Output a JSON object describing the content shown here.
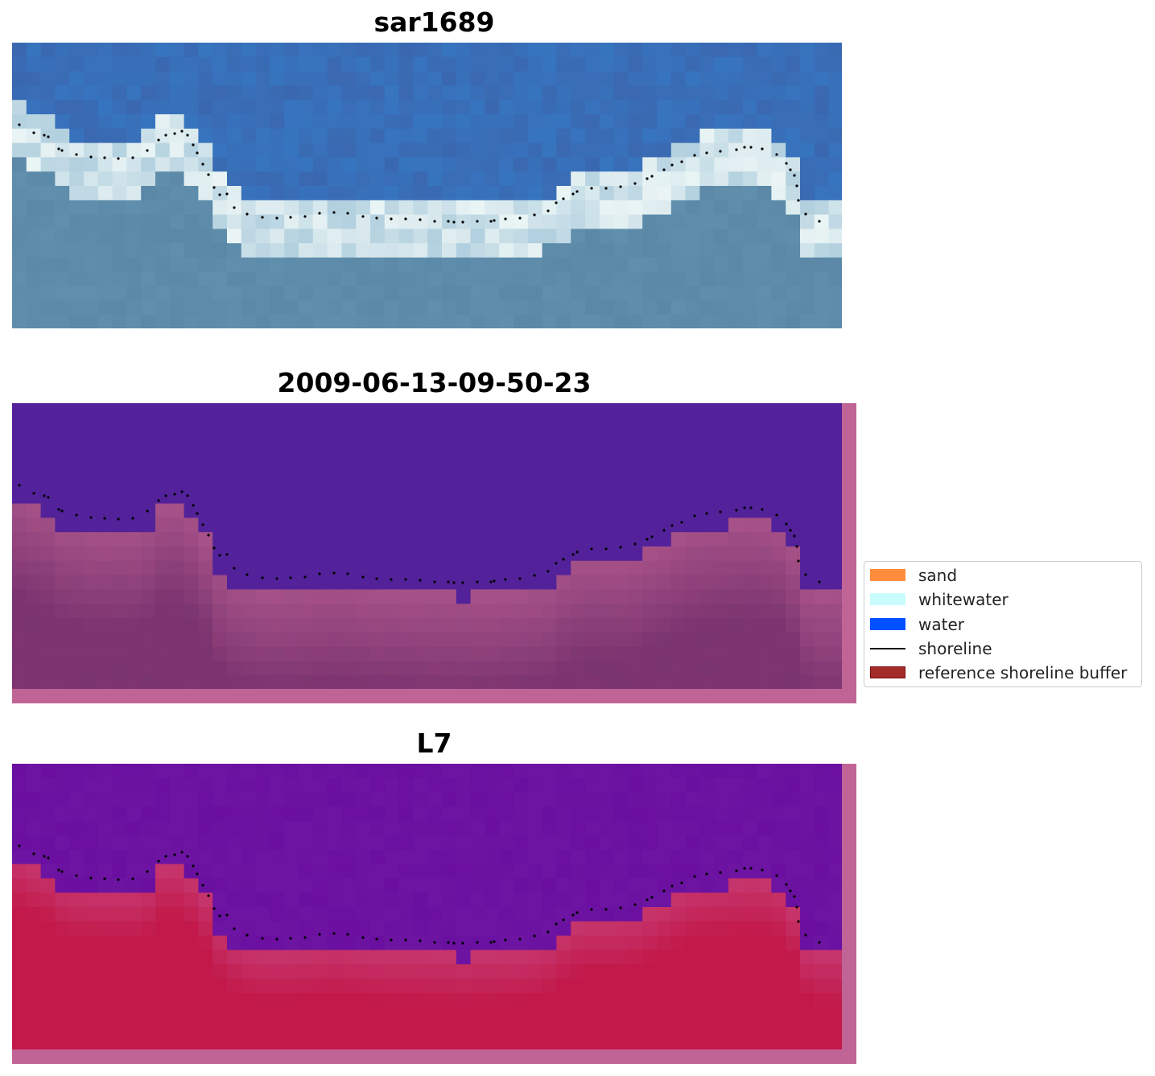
{
  "panels": [
    {
      "title": "sar1689",
      "kind": "rgb"
    },
    {
      "title": "2009-06-13-09-50-23",
      "kind": "classified"
    },
    {
      "title": "L7",
      "kind": "index"
    }
  ],
  "legend": {
    "items": [
      {
        "label": "sand",
        "color": "#ff8c3a",
        "type": "patch"
      },
      {
        "label": "whitewater",
        "color": "#c8fcfb",
        "type": "patch"
      },
      {
        "label": "water",
        "color": "#0050ff",
        "type": "patch"
      },
      {
        "label": "shoreline",
        "color": "#000000",
        "type": "line"
      },
      {
        "label": "reference shoreline buffer",
        "color": "#a52a2a",
        "type": "patch"
      }
    ]
  },
  "colors": {
    "buffer": "#c06496",
    "classified_water": "#53229a",
    "classified_land": "#7a3470",
    "index_water": "#6a0fa0",
    "index_land": "#c2194a",
    "rgb_sky": "#3a68b0",
    "rgb_land": "#5a88a6"
  }
}
